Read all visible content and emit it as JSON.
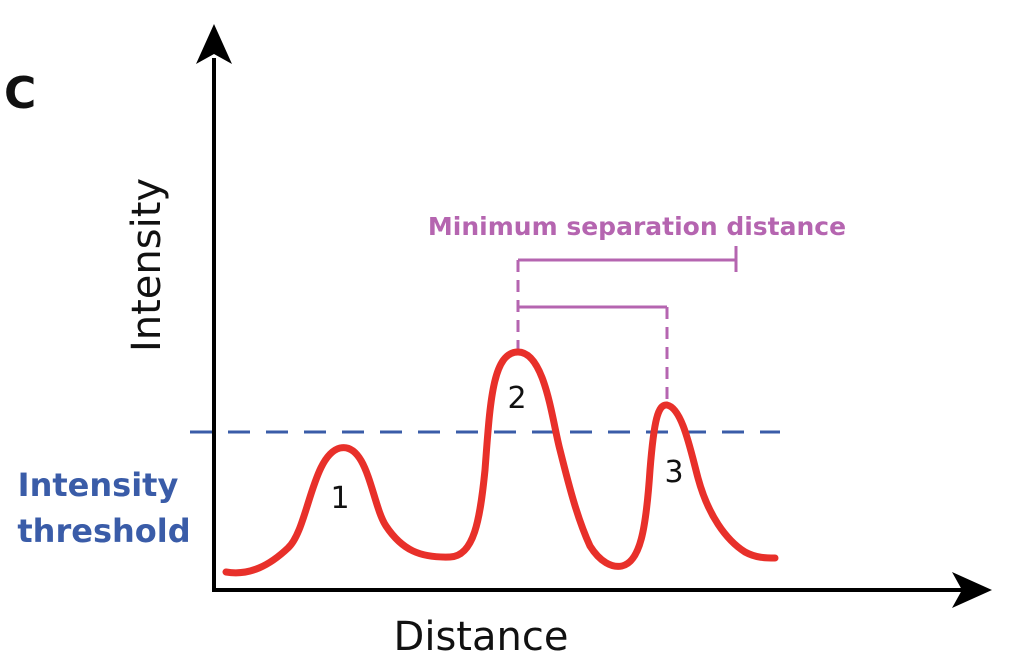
{
  "panel_label": "C",
  "axes": {
    "x_label": "Distance",
    "y_label": "Intensity"
  },
  "threshold": {
    "label_line1": "Intensity",
    "label_line2": "threshold"
  },
  "separation": {
    "label": "Minimum separation distance"
  },
  "peaks": [
    {
      "label": "1"
    },
    {
      "label": "2"
    },
    {
      "label": "3"
    }
  ],
  "colors": {
    "axis": "#000000",
    "curve": "#e8302a",
    "threshold": "#3a5ca8",
    "separation": "#b565b0",
    "text": "#111111"
  }
}
